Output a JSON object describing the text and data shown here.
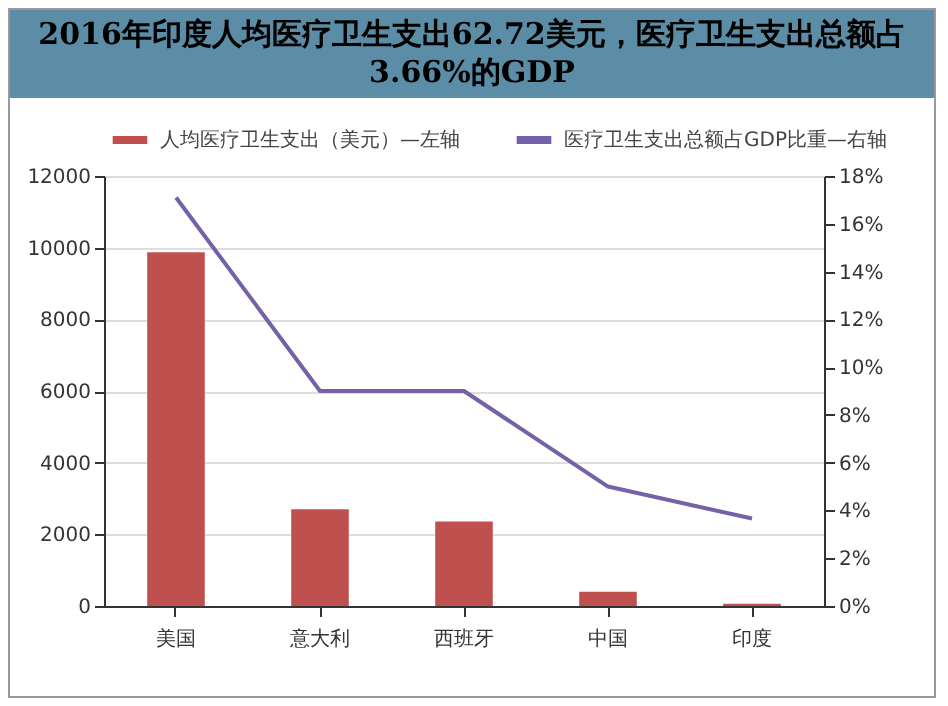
{
  "chart_data": {
    "type": "bar",
    "title": "2016年印度人均医疗卫生支出62.72美元，医疗卫生支出总额占3.66%的GDP",
    "categories": [
      "美国",
      "意大利",
      "西班牙",
      "中国",
      "印度"
    ],
    "series": [
      {
        "name": "人均医疗卫生支出（美元）—左轴",
        "color": "#c0504d",
        "values": [
          9870,
          2700,
          2360,
          400,
          60
        ]
      },
      {
        "name": "医疗卫生支出总额占GDP比重—右轴",
        "type": "line",
        "axis": "y2",
        "color": "#7461a8",
        "values": [
          17.1,
          9.0,
          9.0,
          5.0,
          3.66
        ]
      }
    ],
    "ylim": [
      0,
      12000
    ],
    "yticks": [
      0,
      2000,
      4000,
      6000,
      8000,
      10000,
      12000
    ],
    "y2lim": [
      0,
      18
    ],
    "y2ticks": [
      {
        "value": 0,
        "label": "0%"
      },
      {
        "value": 2,
        "label": "2%"
      },
      {
        "value": 4,
        "label": "4%"
      },
      {
        "value": 6,
        "label": "6%"
      },
      {
        "value": 8,
        "label": "8%"
      },
      {
        "value": 10,
        "label": "10%"
      },
      {
        "value": 12,
        "label": "12%"
      },
      {
        "value": 14,
        "label": "14%"
      },
      {
        "value": 16,
        "label": "16%"
      },
      {
        "value": 18,
        "label": "18%"
      }
    ],
    "grid": "y",
    "legend": "top"
  }
}
